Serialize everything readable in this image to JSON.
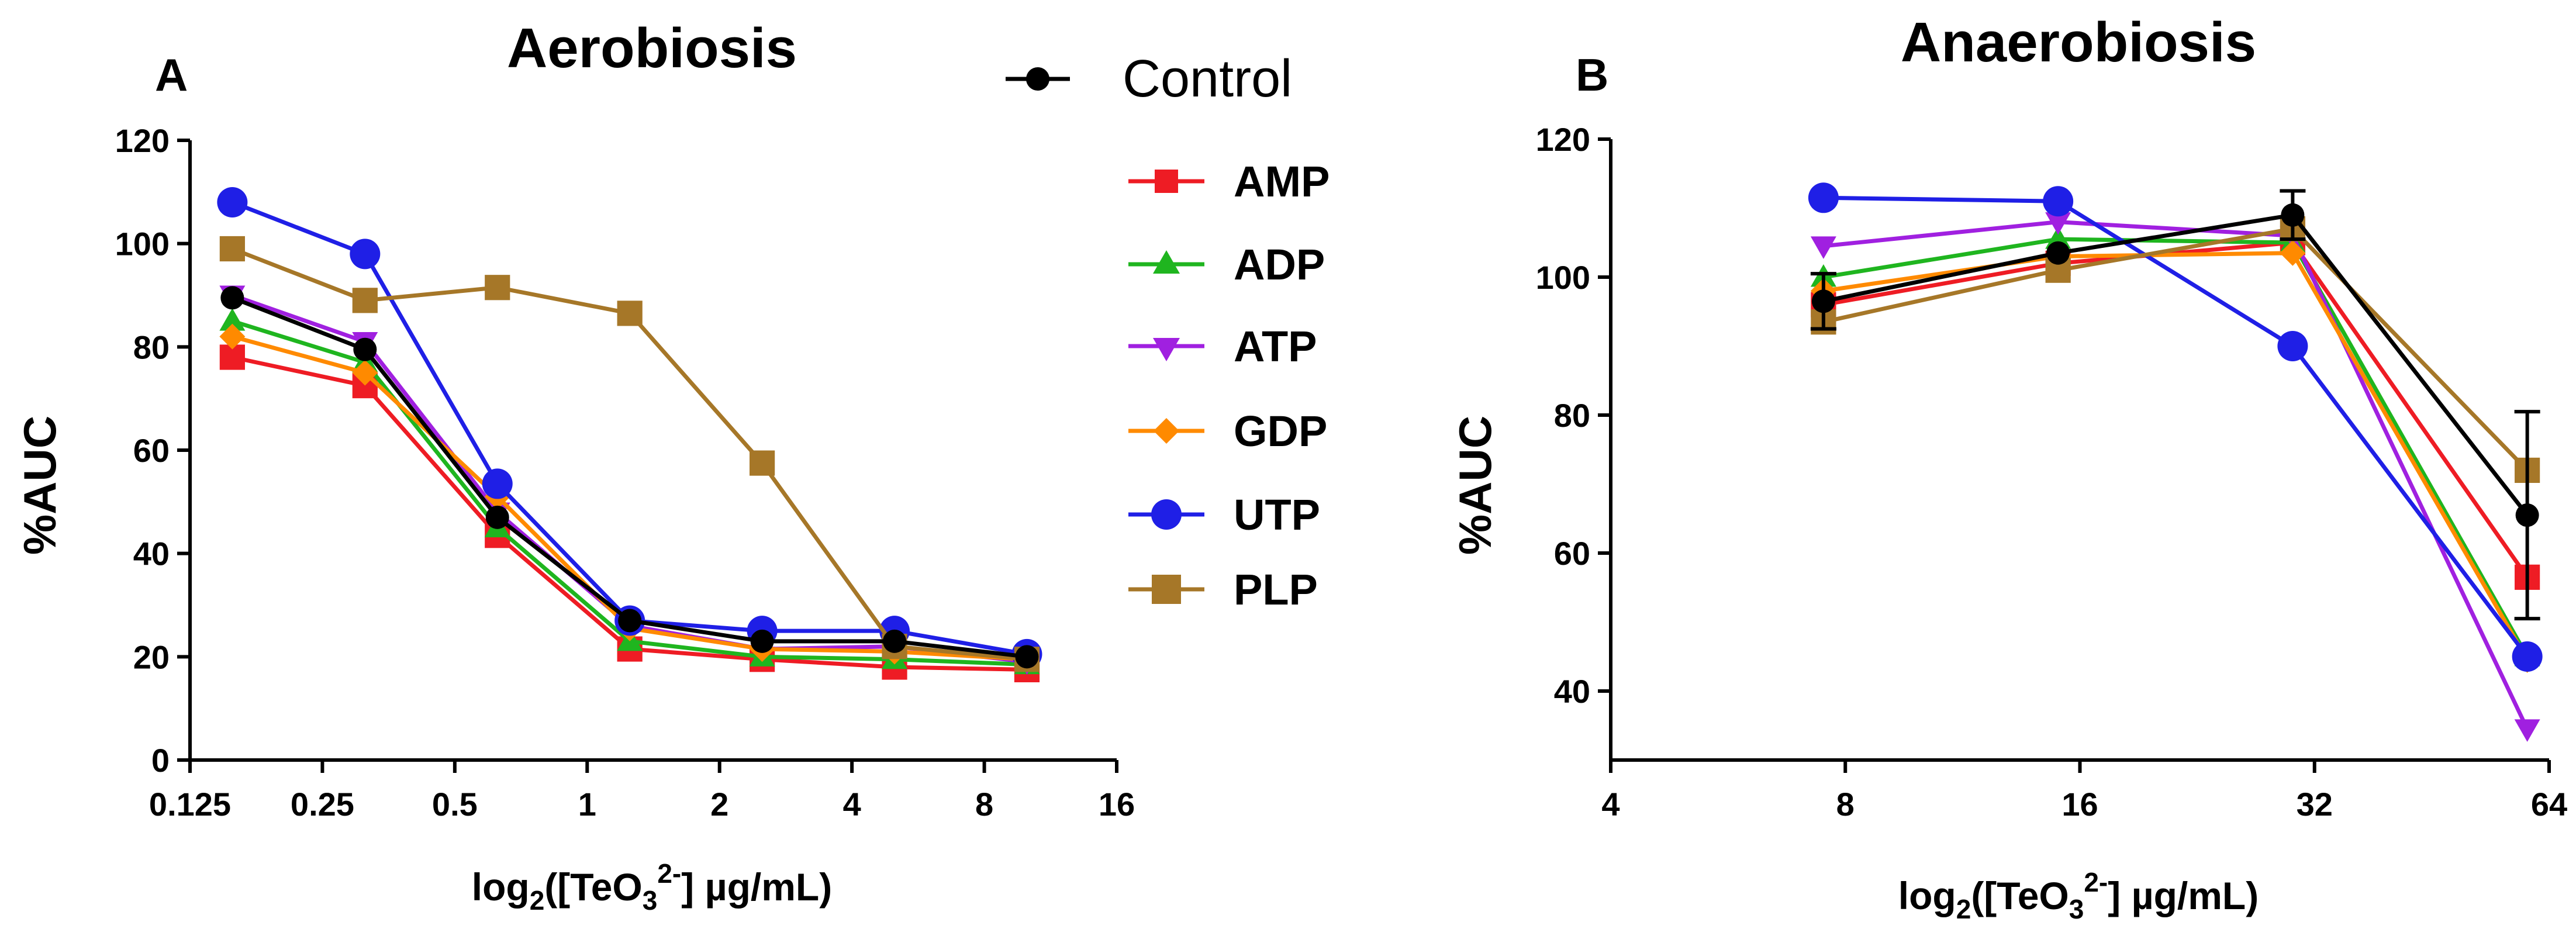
{
  "chart_data": [
    {
      "type": "line",
      "panel": "A",
      "title": "Aerobiosis",
      "ylabel": "%AUC",
      "xlabel": {
        "prefix": "log",
        "prefix_sub": "2",
        "text1": "([TeO",
        "sub": "3",
        "sup": "2-",
        "text2": "] µg/mL)"
      },
      "xscale": "log2",
      "xlim": [
        0.125,
        16
      ],
      "xticks": [
        0.125,
        0.25,
        0.5,
        1,
        2,
        4,
        8,
        16
      ],
      "xtick_labels": [
        "0.125",
        "0.25",
        "0.5",
        "1",
        "2",
        "4",
        "8",
        "16"
      ],
      "ylim": [
        0,
        120
      ],
      "yticks": [
        0,
        20,
        40,
        60,
        80,
        100,
        120
      ],
      "ytick_labels": [
        "0",
        "20",
        "40",
        "60",
        "80",
        "100",
        "120"
      ],
      "x": [
        0.156,
        0.3125,
        0.625,
        1.25,
        2.5,
        5,
        10
      ],
      "legend_position": "right",
      "series": [
        {
          "name": "AMP",
          "color": "#ee1c24",
          "marker": "square",
          "values": [
            78,
            72.5,
            43.5,
            21.5,
            19.5,
            18,
            17.5
          ]
        },
        {
          "name": "ADP",
          "color": "#1fb51f",
          "marker": "triangle-up",
          "values": [
            85,
            77,
            45,
            23,
            20,
            19.5,
            18.5
          ]
        },
        {
          "name": "ATP",
          "color": "#a020e0",
          "marker": "triangle-down",
          "values": [
            90,
            81,
            48,
            26,
            21.5,
            22,
            19
          ]
        },
        {
          "name": "GDP",
          "color": "#ff8a00",
          "marker": "diamond",
          "values": [
            82,
            75,
            51,
            25.5,
            21.5,
            21,
            19.5
          ]
        },
        {
          "name": "UTP",
          "color": "#1f1fe6",
          "marker": "circle",
          "values": [
            108,
            98,
            53.5,
            27,
            25,
            25,
            20.5
          ]
        },
        {
          "name": "PLP",
          "color": "#a67728",
          "marker": "square",
          "values": [
            99,
            89,
            91.5,
            86.5,
            57.5,
            22,
            19.5
          ]
        },
        {
          "name": "Control",
          "color": "#000000",
          "marker": "circle",
          "values": [
            89.5,
            79.5,
            47,
            27,
            23,
            23,
            20
          ]
        }
      ]
    },
    {
      "type": "line",
      "panel": "B",
      "title": "Anaerobiosis",
      "ylabel": "%AUC",
      "xlabel": {
        "prefix": "log",
        "prefix_sub": "2",
        "text1": "([TeO",
        "sub": "3",
        "sup": "2-",
        "text2": "] µg/mL)"
      },
      "xscale": "log2",
      "xlim": [
        4,
        64
      ],
      "xticks": [
        4,
        8,
        16,
        32,
        64
      ],
      "xtick_labels": [
        "4",
        "8",
        "16",
        "32",
        "64"
      ],
      "ylim": [
        30,
        120
      ],
      "yticks": [
        40,
        60,
        80,
        100,
        120
      ],
      "ytick_labels": [
        "40",
        "60",
        "80",
        "100",
        "120"
      ],
      "x": [
        7.5,
        15,
        30,
        60
      ],
      "series": [
        {
          "name": "AMP",
          "color": "#ee1c24",
          "marker": "square",
          "values": [
            96,
            102,
            105,
            56.5
          ]
        },
        {
          "name": "ADP",
          "color": "#1fb51f",
          "marker": "triangle-up",
          "values": [
            100,
            105.5,
            105,
            45
          ]
        },
        {
          "name": "ATP",
          "color": "#a020e0",
          "marker": "triangle-down",
          "values": [
            104.5,
            108,
            106,
            34.5
          ]
        },
        {
          "name": "GDP",
          "color": "#ff8a00",
          "marker": "diamond",
          "values": [
            98,
            103,
            103.5,
            44.5
          ]
        },
        {
          "name": "UTP",
          "color": "#1f1fe6",
          "marker": "circle",
          "values": [
            111.5,
            111,
            90,
            45
          ]
        },
        {
          "name": "PLP",
          "color": "#a67728",
          "marker": "square",
          "values": [
            93.5,
            101,
            107,
            72
          ]
        },
        {
          "name": "Control",
          "color": "#000000",
          "marker": "circle",
          "values": [
            96.5,
            103.5,
            109,
            65.5
          ],
          "error": [
            4,
            0,
            3.5,
            15
          ]
        }
      ]
    }
  ]
}
